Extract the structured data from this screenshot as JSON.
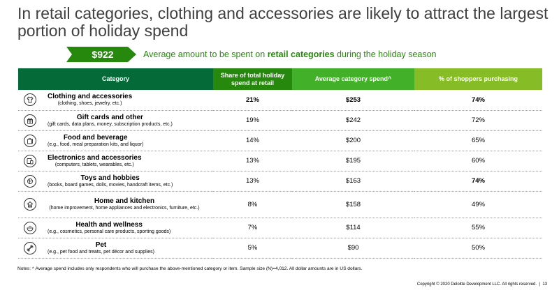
{
  "title": "In retail categories, clothing and accessories are likely to attract the largest portion of holiday spend",
  "banner": {
    "amount": "$922",
    "text_before": "Average amount to be spent on ",
    "text_bold": "retail categories",
    "text_after": " during the holiday season"
  },
  "table": {
    "headers": [
      "Category",
      "Share of total holiday spend at retail",
      "Average category spend^",
      "% of shoppers purchasing"
    ],
    "rows": [
      {
        "icon": "shirt-icon",
        "name": "Clothing and accessories",
        "desc": "(clothing, shoes, jewelry, etc.)",
        "share": "21%",
        "spend": "$253",
        "pct": "74%"
      },
      {
        "icon": "gift-icon",
        "name": "Gift cards and other",
        "desc": "(gift cards, data plans, money, subscription products, etc.)",
        "share": "19%",
        "spend": "$242",
        "pct": "72%"
      },
      {
        "icon": "food-bag-icon",
        "name": "Food and beverage",
        "desc": "(e.g., food, meal preparation kits, and liquor)",
        "share": "14%",
        "spend": "$200",
        "pct": "65%"
      },
      {
        "icon": "devices-icon",
        "name": "Electronics and accessories",
        "desc": "(computers, tablets, wearables, etc.)",
        "share": "13%",
        "spend": "$195",
        "pct": "60%"
      },
      {
        "icon": "toy-icon",
        "name": "Toys and hobbies",
        "desc": "(books, board games, dolls, movies, handcraft items, etc.)",
        "share": "13%",
        "spend": "$163",
        "pct": "74%"
      },
      {
        "icon": "house-icon",
        "name": "Home and kitchen",
        "desc": "(home improvement, home appliances and electronics, furniture, etc.)",
        "share": "8%",
        "spend": "$158",
        "pct": "49%"
      },
      {
        "icon": "bowl-icon",
        "name": "Health and wellness",
        "desc": "(e.g., cosmetics, personal care products, sporting goods)",
        "share": "7%",
        "spend": "$114",
        "pct": "55%"
      },
      {
        "icon": "bone-icon",
        "name": "Pet",
        "desc": "(e.g., pet food and treats, pet décor and supplies)",
        "share": "5%",
        "spend": "$90",
        "pct": "50%"
      }
    ]
  },
  "notes": "Notes: ^ Average spend includes only respondents who will purchase the above-mentioned category or item. Sample size (N)=4,012. All dollar amounts are in US dollars.",
  "copyright": "Copyright © 2020 Deloitte Development LLC. All rights reserved.",
  "page_number": "13",
  "colors": {
    "dark_green": "#046a38",
    "green": "#26890d",
    "mid_green": "#43b02a",
    "light_green": "#86bc25",
    "title_gray": "#404040"
  }
}
